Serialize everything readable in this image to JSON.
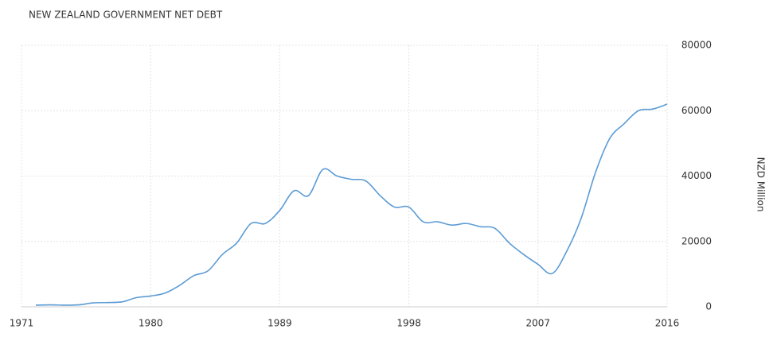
{
  "chart_data": {
    "type": "line",
    "title": "NEW ZEALAND GOVERNMENT NET DEBT",
    "y_label": "NZD Million",
    "x": [
      1972,
      1973,
      1974,
      1975,
      1976,
      1977,
      1978,
      1979,
      1980,
      1981,
      1982,
      1983,
      1984,
      1985,
      1986,
      1987,
      1988,
      1989,
      1990,
      1991,
      1992,
      1993,
      1994,
      1995,
      1996,
      1997,
      1998,
      1999,
      2000,
      2001,
      2002,
      2003,
      2004,
      2005,
      2006,
      2007,
      2008,
      2009,
      2010,
      2011,
      2012,
      2013,
      2014,
      2015,
      2016
    ],
    "series": [
      {
        "name": "Net Debt",
        "color": "#5b9bd5",
        "values": [
          500,
          600,
          500,
          600,
          1200,
          1300,
          1500,
          2800,
          3300,
          4200,
          6500,
          9500,
          11000,
          16000,
          19500,
          25500,
          25500,
          29500,
          35500,
          34000,
          42000,
          40000,
          39000,
          38500,
          34000,
          30500,
          30500,
          26000,
          26000,
          25000,
          25500,
          24500,
          24000,
          19500,
          16000,
          13000,
          10200,
          17000,
          27000,
          41000,
          51500,
          56000,
          60000,
          60500,
          62000
        ]
      }
    ],
    "xlim": [
      1971,
      2016
    ],
    "xticks": [
      1971,
      1980,
      1989,
      1998,
      2007,
      2016
    ],
    "ylim": [
      0,
      80000
    ],
    "yticks": [
      0,
      20000,
      40000,
      60000,
      80000
    ],
    "grid": true
  }
}
